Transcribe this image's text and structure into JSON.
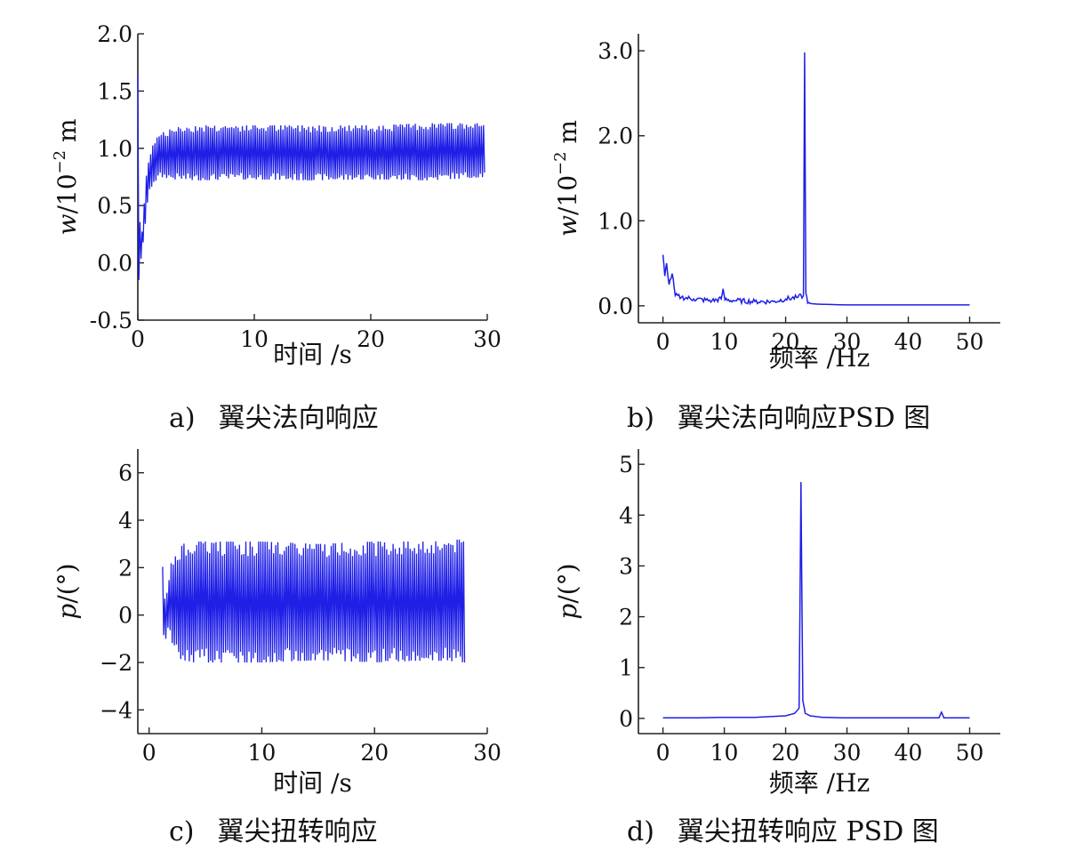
{
  "chart_data": [
    {
      "id": "a",
      "type": "line",
      "caption_letter": "a)",
      "caption_text": "翼尖法向响应",
      "xlabel": "时间 /s",
      "ylabel_var": "w",
      "ylabel_rest": "/10",
      "ylabel_exp": "−2",
      "ylabel_unit": " m",
      "xlim": [
        0,
        30
      ],
      "ylim": [
        -0.5,
        2.0
      ],
      "xticks": [
        0,
        10,
        20,
        30
      ],
      "yticks": [
        -0.5,
        0.0,
        0.5,
        1.0,
        1.5,
        2.0
      ],
      "ytick_labels": [
        "-0.5",
        "0.0",
        "0.5",
        "1.0",
        "1.5",
        "2.0"
      ],
      "series": [
        {
          "color": "#1f1fe6",
          "kind": "time_band",
          "x": [
            0.0,
            0.1,
            0.25,
            0.4,
            0.6,
            0.8,
            1.0,
            1.3,
            1.6,
            2.0,
            2.5,
            3.0,
            5.0,
            10.0,
            15.0,
            20.0,
            25.0,
            29.8
          ],
          "upper": [
            1.72,
            0.6,
            0.2,
            0.3,
            0.6,
            0.85,
            0.95,
            1.05,
            1.1,
            1.15,
            1.15,
            1.18,
            1.2,
            1.2,
            1.2,
            1.2,
            1.22,
            1.22
          ],
          "lower": [
            -0.15,
            -0.15,
            0.0,
            0.1,
            0.3,
            0.5,
            0.6,
            0.7,
            0.72,
            0.75,
            0.74,
            0.73,
            0.72,
            0.73,
            0.72,
            0.73,
            0.72,
            0.75
          ]
        }
      ]
    },
    {
      "id": "b",
      "type": "line",
      "caption_letter": "b)",
      "caption_text": "翼尖法向响应PSD 图",
      "xlabel": "频率 /Hz",
      "ylabel_var": "w",
      "ylabel_rest": "/10",
      "ylabel_exp": "−2",
      "ylabel_unit": " m",
      "xlim": [
        -4,
        55
      ],
      "ylim": [
        -0.2,
        3.2
      ],
      "xticks": [
        0,
        10,
        20,
        30,
        40,
        50
      ],
      "yticks": [
        0.0,
        1.0,
        2.0,
        3.0
      ],
      "ytick_labels": [
        "0.0",
        "1.0",
        "2.0",
        "3.0"
      ],
      "series": [
        {
          "color": "#1f1fe6",
          "kind": "psd",
          "x": [
            0.0,
            0.3,
            0.6,
            1.0,
            1.5,
            2.0,
            3.0,
            5.0,
            8.0,
            9.5,
            9.8,
            10.1,
            12.0,
            15.0,
            18.0,
            20.0,
            22.0,
            22.9,
            23.1,
            23.3,
            23.6,
            25.0,
            30.0,
            40.0,
            50.0
          ],
          "y": [
            0.6,
            0.35,
            0.5,
            0.25,
            0.38,
            0.12,
            0.1,
            0.08,
            0.06,
            0.08,
            0.2,
            0.07,
            0.06,
            0.05,
            0.05,
            0.08,
            0.1,
            0.12,
            2.98,
            0.15,
            0.03,
            0.02,
            0.01,
            0.01,
            0.01
          ],
          "noise_until": 24,
          "noise_amp": 0.03
        }
      ]
    },
    {
      "id": "c",
      "type": "line",
      "caption_letter": "c)",
      "caption_text": "翼尖扭转响应",
      "xlabel": "时间 /s",
      "ylabel_var": "p",
      "ylabel_rest": "/(°)",
      "ylabel_exp": "",
      "ylabel_unit": "",
      "xlim": [
        -1,
        30
      ],
      "ylim": [
        -5,
        7
      ],
      "xticks": [
        0,
        10,
        20,
        30
      ],
      "yticks": [
        -4,
        -2,
        0,
        2,
        4,
        6
      ],
      "ytick_labels": [
        "−4",
        "−2",
        "0",
        "2",
        "4",
        "6"
      ],
      "series": [
        {
          "color": "#1f1fe6",
          "kind": "time_band",
          "x": [
            1.2,
            1.4,
            1.7,
            2.0,
            2.5,
            3.0,
            4.0,
            10.0,
            15.0,
            20.0,
            25.0,
            28.0
          ],
          "upper": [
            2.4,
            0.6,
            1.5,
            2.3,
            2.8,
            3.0,
            3.1,
            3.1,
            3.0,
            3.1,
            3.1,
            3.2
          ],
          "lower": [
            -0.9,
            -1.2,
            -0.5,
            -1.3,
            -1.8,
            -1.9,
            -2.0,
            -2.0,
            -1.9,
            -2.0,
            -1.9,
            -2.0
          ]
        }
      ]
    },
    {
      "id": "d",
      "type": "line",
      "caption_letter": "d)",
      "caption_text": "翼尖扭转响应 PSD 图",
      "xlabel": "频率 /Hz",
      "ylabel_var": "p",
      "ylabel_rest": "/(°)",
      "ylabel_exp": "",
      "ylabel_unit": "",
      "xlim": [
        -4,
        55
      ],
      "ylim": [
        -0.3,
        5.3
      ],
      "xticks": [
        0,
        10,
        20,
        30,
        40,
        50
      ],
      "yticks": [
        0,
        1,
        2,
        3,
        4,
        5
      ],
      "ytick_labels": [
        "0",
        "1",
        "2",
        "3",
        "4",
        "5"
      ],
      "series": [
        {
          "color": "#1f1fe6",
          "kind": "psd",
          "x": [
            0.0,
            5.0,
            10.0,
            15.0,
            20.0,
            21.5,
            22.2,
            22.5,
            22.8,
            23.2,
            24.0,
            26.0,
            30.0,
            40.0,
            45.0,
            45.4,
            45.8,
            50.0
          ],
          "y": [
            0.01,
            0.01,
            0.02,
            0.02,
            0.05,
            0.1,
            0.2,
            4.65,
            0.35,
            0.1,
            0.05,
            0.02,
            0.01,
            0.01,
            0.01,
            0.12,
            0.01,
            0.01
          ],
          "noise_until": 0,
          "noise_amp": 0.0
        }
      ]
    }
  ]
}
